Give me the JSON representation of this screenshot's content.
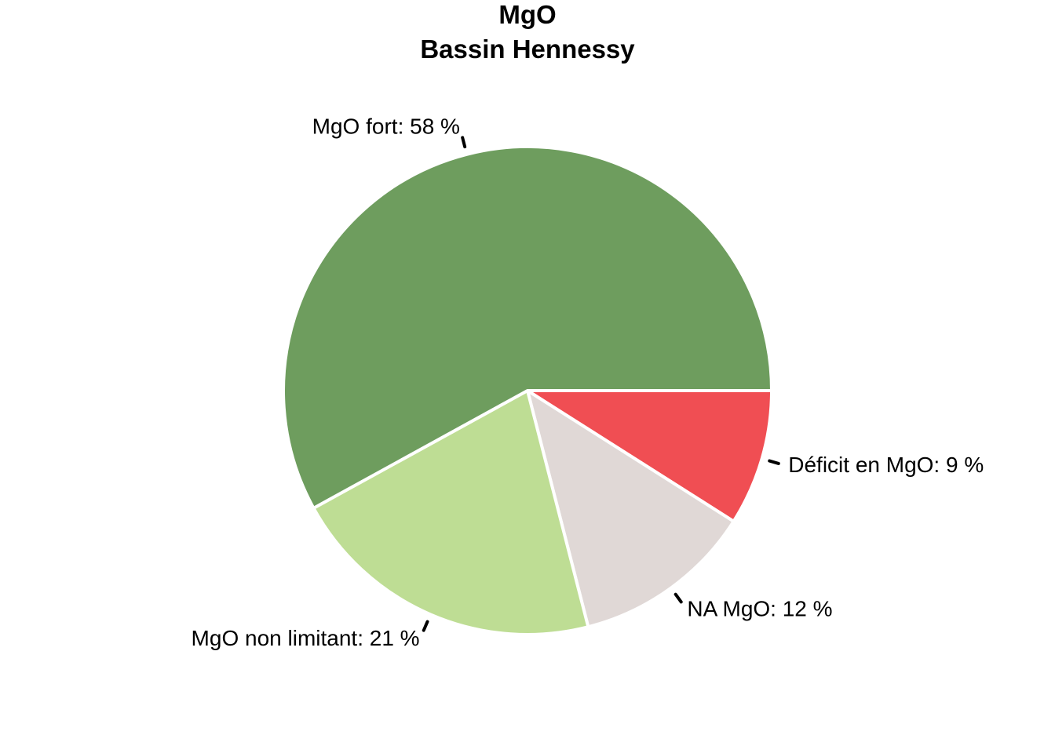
{
  "chart_data": {
    "type": "pie",
    "title": "MgO",
    "subtitle": "Bassin Hennessy",
    "slices": [
      {
        "label": "Déficit en MgO: 9 %",
        "value": 9,
        "color": "#F04E53"
      },
      {
        "label": "NA MgO: 12 %",
        "value": 12,
        "color": "#E0D8D6"
      },
      {
        "label": "MgO non limitant: 21 %",
        "value": 21,
        "color": "#BEDD94"
      },
      {
        "label": "MgO fort: 58 %",
        "value": 58,
        "color": "#6E9D5E"
      }
    ],
    "start": "3 o'clock",
    "direction": "clockwise",
    "slice_border_color": "#FFFFFF"
  }
}
